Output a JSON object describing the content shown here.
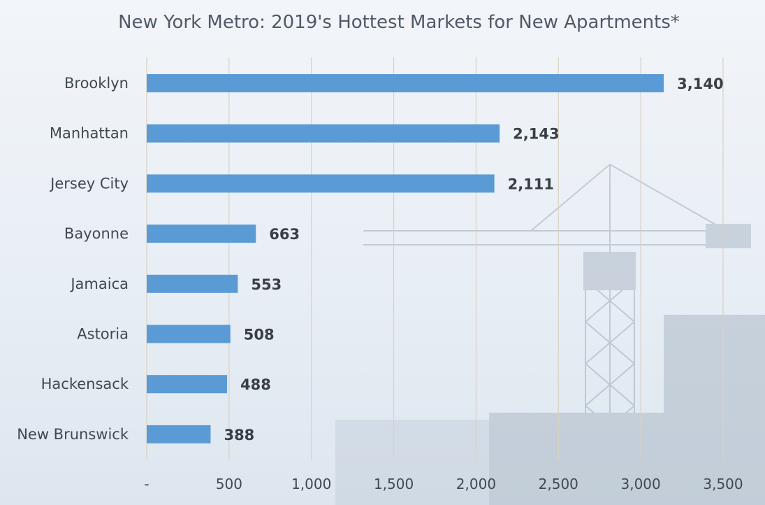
{
  "chart_data": {
    "type": "bar",
    "orientation": "horizontal",
    "title": "New York Metro: 2019's Hottest Markets for New Apartments*",
    "categories": [
      "Brooklyn",
      "Manhattan",
      "Jersey City",
      "Bayonne",
      "Jamaica",
      "Astoria",
      "Hackensack",
      "New Brunswick"
    ],
    "values": [
      3140,
      2143,
      2111,
      663,
      553,
      508,
      488,
      388
    ],
    "data_labels": [
      "3,140",
      "2,143",
      "2,111",
      "663",
      "553",
      "508",
      "488",
      "388"
    ],
    "x_ticks": [
      0,
      500,
      1000,
      1500,
      2000,
      2500,
      3000,
      3500
    ],
    "x_tick_labels": [
      "-",
      "500",
      "1,000",
      "1,500",
      "2,000",
      "2,500",
      "3,000",
      "3,500"
    ],
    "xlim": [
      0,
      3500
    ],
    "xlabel": "",
    "ylabel": "",
    "grid": "vertical",
    "legend": "none",
    "colors": {
      "bar": "#5b9bd5",
      "grid": "#d9d2c2",
      "text": "#404850"
    }
  }
}
